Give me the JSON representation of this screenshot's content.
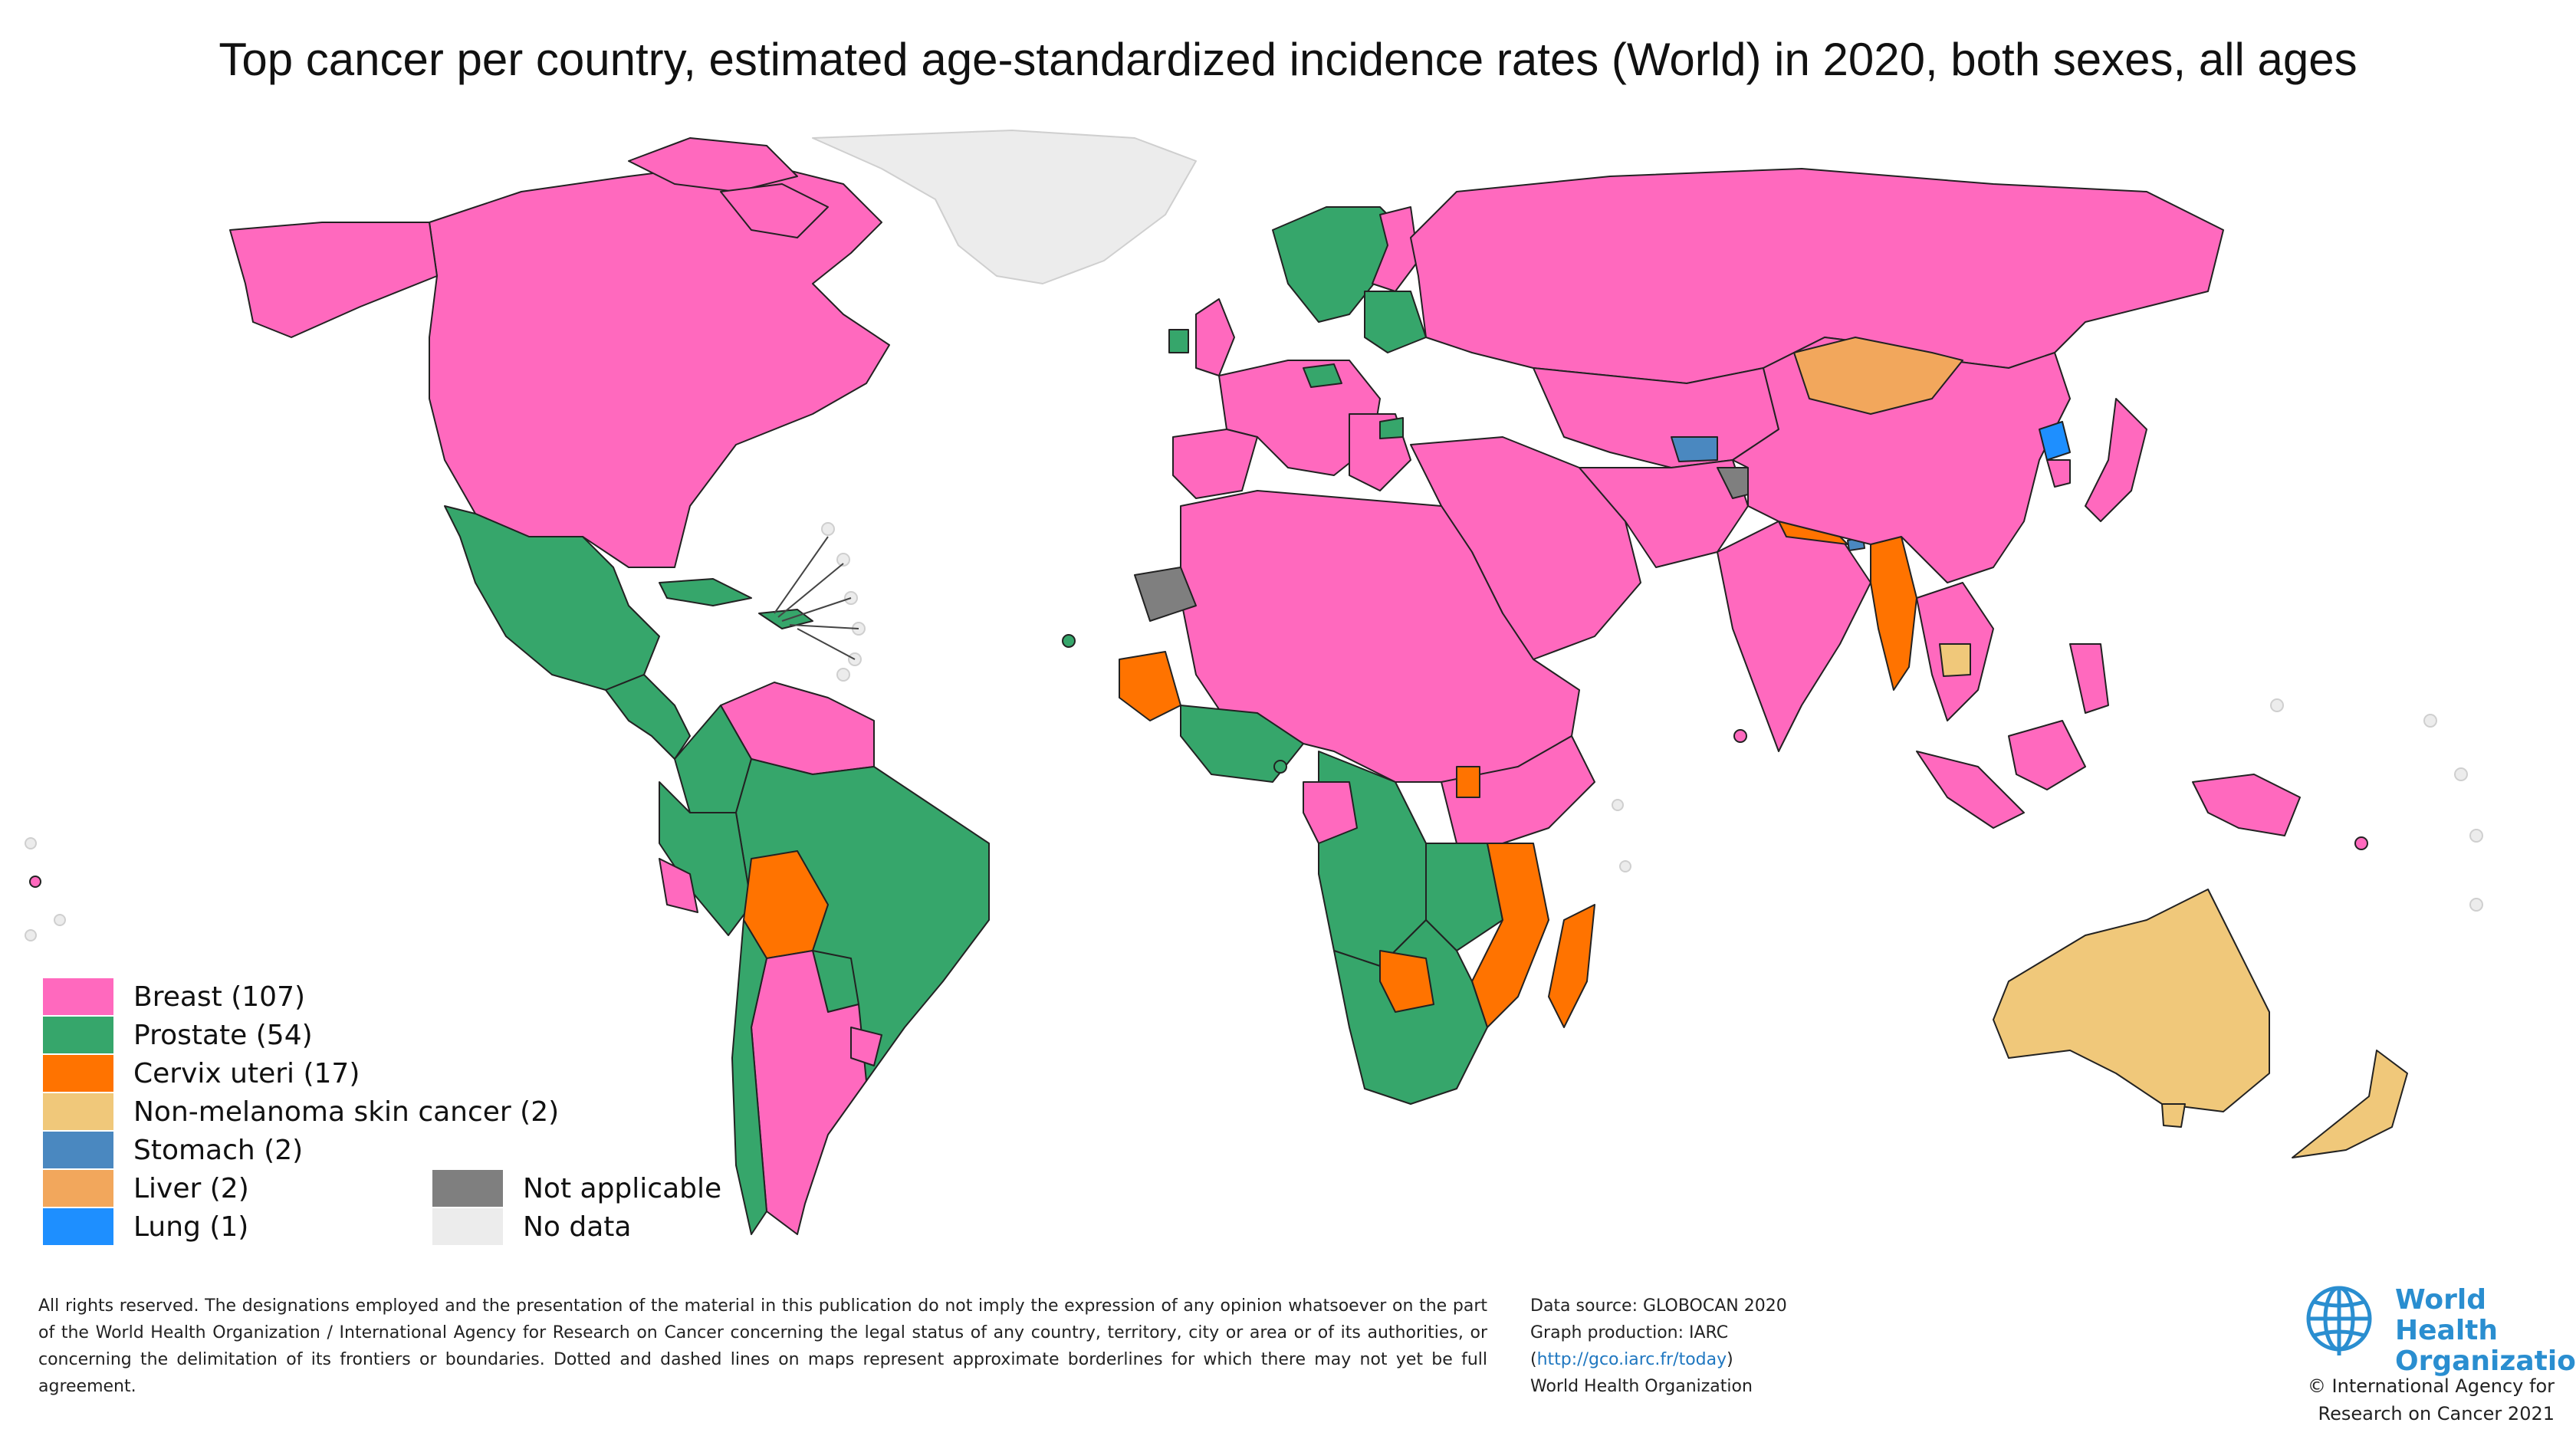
{
  "title": "Top cancer per country, estimated age-standardized incidence rates (World) in 2020, both sexes, all ages",
  "colors": {
    "breast": "#ff69be",
    "prostate": "#36a66b",
    "cervix": "#ff7300",
    "nonmelanoma": "#f0c87a",
    "stomach": "#4a88c0",
    "liver": "#f2a75c",
    "lung": "#1e8fff",
    "not_applicable": "#7f7f7f",
    "no_data": "#ececec",
    "border": "#222222"
  },
  "legend": {
    "items": [
      {
        "label": "Breast (107)",
        "color": "#ff69be"
      },
      {
        "label": "Prostate (54)",
        "color": "#36a66b"
      },
      {
        "label": "Cervix uteri (17)",
        "color": "#ff7300"
      },
      {
        "label": "Non-melanoma skin cancer (2)",
        "color": "#f0c87a"
      },
      {
        "label": "Stomach (2)",
        "color": "#4a88c0"
      },
      {
        "label": "Liver (2)",
        "color": "#f2a75c"
      },
      {
        "label": "Lung (1)",
        "color": "#1e8fff"
      }
    ],
    "extra": [
      {
        "label": "Not applicable",
        "color": "#7f7f7f"
      },
      {
        "label": "No data",
        "color": "#ececec"
      }
    ]
  },
  "disclaimer": "All rights reserved. The designations employed and the presentation of the material in this publication do not imply the expression of any opinion whatsoever on the part of the World Health Organization / International Agency for Research on Cancer concerning the legal status of any country, territory, city or area or of its authorities, or concerning the delimitation of its frontiers or boundaries. Dotted and dashed lines on maps represent approximate borderlines for which there may not yet be full agreement.",
  "source": {
    "line1": "Data source: GLOBOCAN 2020",
    "line2": "Graph production: IARC",
    "link_open": "(",
    "link": "http://gco.iarc.fr/today",
    "link_close": ")",
    "line4": "World Health Organization"
  },
  "logo": {
    "line1": "World Health",
    "line2": "Organization"
  },
  "copyright": {
    "line1": "© International Agency for",
    "line2": "Research on Cancer 2021"
  }
}
